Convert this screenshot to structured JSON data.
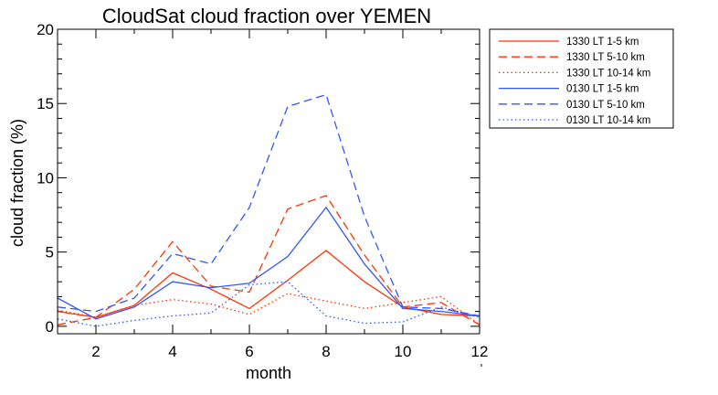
{
  "chart_data": {
    "type": "line",
    "title": "CloudSat cloud fraction over YEMEN",
    "xlabel": "month",
    "ylabel": "cloud fraction (%)",
    "xlim": [
      1,
      12
    ],
    "ylim": [
      -0.5,
      20
    ],
    "xticks": [
      2,
      4,
      6,
      8,
      10,
      12
    ],
    "yticks": [
      0,
      5,
      10,
      15,
      20
    ],
    "x": [
      1,
      2,
      3,
      4,
      5,
      6,
      7,
      8,
      9,
      10,
      11,
      12
    ],
    "legend_position": "outside-top-right",
    "series": [
      {
        "name": "1330 LT 1-5 km",
        "color": "#ff3300",
        "dash": "solid",
        "values": [
          1.0,
          0.6,
          1.4,
          3.6,
          2.5,
          1.2,
          3.1,
          5.1,
          3.0,
          1.3,
          0.8,
          0.7
        ]
      },
      {
        "name": "1330 LT 5-10 km",
        "color": "#ff3300",
        "dash": "dashed",
        "values": [
          0.1,
          0.6,
          2.5,
          5.7,
          2.7,
          2.3,
          7.9,
          8.8,
          4.8,
          1.3,
          1.6,
          0.1
        ]
      },
      {
        "name": "1330 LT 10-14 km",
        "color": "#ff3300",
        "dash": "dotted",
        "values": [
          1.1,
          0.6,
          1.4,
          1.8,
          1.5,
          0.8,
          2.2,
          1.7,
          1.2,
          1.6,
          2.0,
          0.1
        ]
      },
      {
        "name": "0130 LT 1-5 km",
        "color": "#3355ff",
        "dash": "solid",
        "values": [
          1.9,
          0.5,
          1.3,
          3.0,
          2.6,
          2.9,
          4.7,
          8.0,
          4.2,
          1.2,
          1.0,
          0.7
        ]
      },
      {
        "name": "0130 LT 5-10 km",
        "color": "#3355ff",
        "dash": "dashed",
        "values": [
          1.3,
          1.0,
          1.9,
          4.9,
          4.2,
          8.0,
          14.8,
          15.6,
          7.4,
          1.3,
          1.2,
          0.7
        ]
      },
      {
        "name": "0130 LT 10-14 km",
        "color": "#3355ff",
        "dash": "dotted",
        "values": [
          0.5,
          0.0,
          0.4,
          0.7,
          0.9,
          2.8,
          3.0,
          0.7,
          0.2,
          0.3,
          1.3,
          0.6
        ]
      }
    ]
  }
}
